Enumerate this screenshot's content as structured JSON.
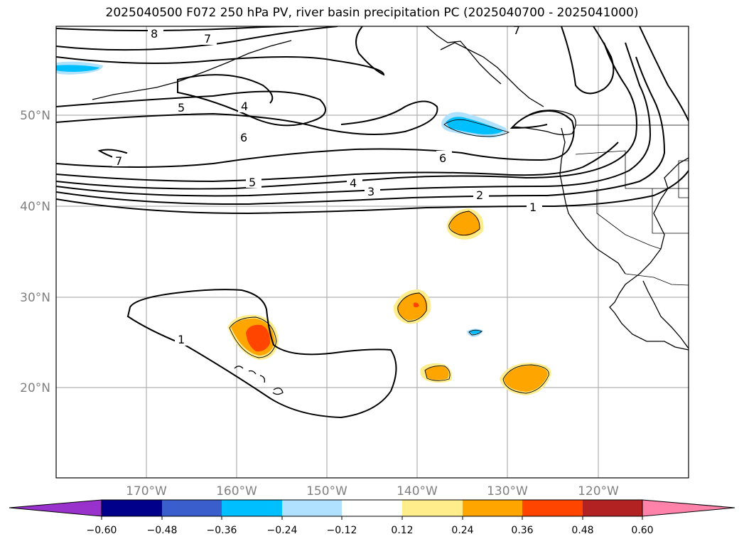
{
  "title": "2025040500 F072 250 hPa PV, river basin precipitation PC (2025040700 - 2025041000)",
  "latitude_labels": [
    "50°N",
    "40°N",
    "30°N",
    "20°N"
  ],
  "longitude_labels": [
    "170°W",
    "160°W",
    "150°W",
    "140°W",
    "130°W",
    "120°W"
  ],
  "contour_labels": [
    "8",
    "7",
    "7",
    "5",
    "4",
    "6",
    "7",
    "6",
    "5",
    "4",
    "3",
    "2",
    "1",
    "1"
  ],
  "colorbar": {
    "ticks": [
      "−0.60",
      "−0.48",
      "−0.36",
      "−0.24",
      "−0.12",
      "0.12",
      "0.24",
      "0.36",
      "0.48",
      "0.60"
    ],
    "colors": [
      "#9932cc",
      "#00008b",
      "#3a5fcd",
      "#00bfff",
      "#b0e2ff",
      "#ffffff",
      "#ffec8b",
      "#ffa500",
      "#ff4500",
      "#b22222",
      "#ff82ab"
    ]
  },
  "shading_colors": {
    "light_yellow": "#ffec8b",
    "orange": "#ffa500",
    "red_orange": "#ff4500",
    "cyan": "#00bfff",
    "light_blue": "#b0e2ff"
  }
}
